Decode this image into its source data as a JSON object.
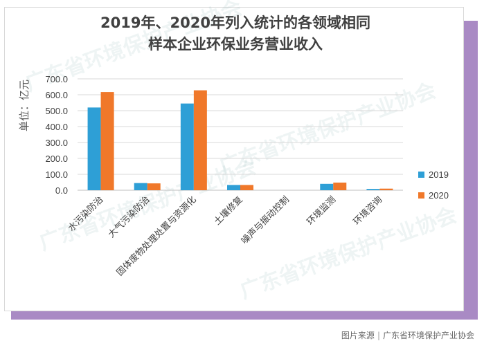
{
  "caption": {
    "source_label": "图片来源",
    "source_name": "广东省环境保护产业协会"
  },
  "watermark_text": "广东省环境保护产业协会",
  "chart_data": {
    "type": "bar",
    "title_line1": "2019年、2020年列入统计的各领域相同",
    "title_line2": "样本企业环保业务营业收入",
    "ylabel": "单位：亿元",
    "xlabel": "",
    "ylim": [
      0,
      700
    ],
    "yticks": [
      "0.0",
      "100.0",
      "200.0",
      "300.0",
      "400.0",
      "500.0",
      "600.0",
      "700.0"
    ],
    "grid": true,
    "legend_position": "right",
    "categories": [
      "水污染防治",
      "大气污染防治",
      "固体废物处理处置与资源化",
      "土壤修复",
      "噪声与振动控制",
      "环境监测",
      "环境咨询"
    ],
    "series": [
      {
        "name": "2019",
        "color": "#2e9fd6",
        "values": [
          520,
          45,
          545,
          33,
          0,
          40,
          8
        ]
      },
      {
        "name": "2020",
        "color": "#f0782a",
        "values": [
          617,
          43,
          628,
          33,
          0,
          48,
          10
        ]
      }
    ]
  }
}
